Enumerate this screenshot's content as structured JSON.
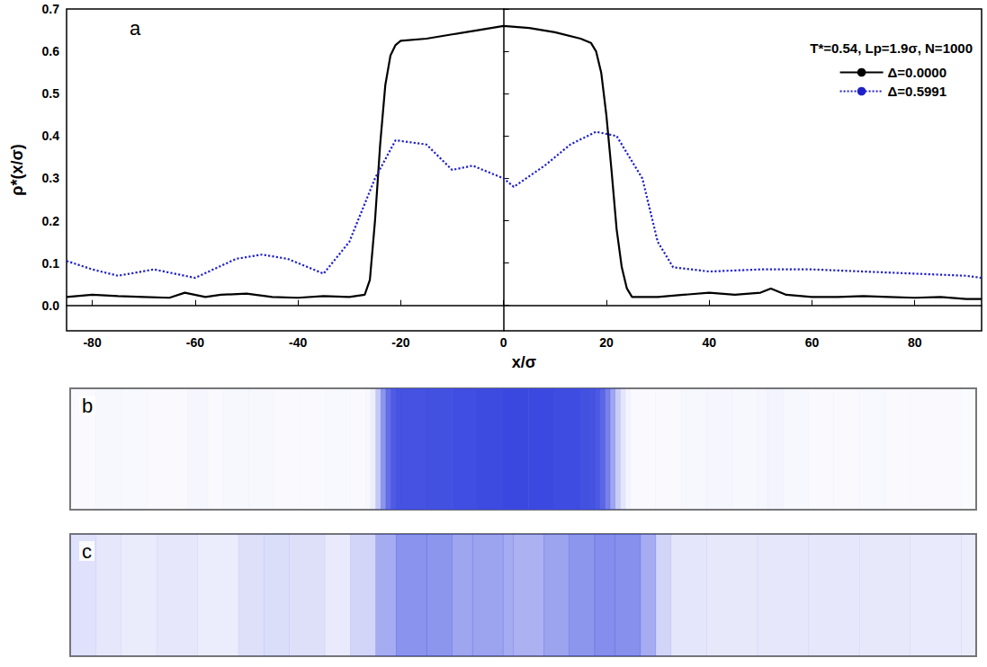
{
  "chart_data": {
    "type": "line",
    "panel_label": "a",
    "x_label": "x/σ",
    "y_label": "ρ*(x/σ)",
    "legend_title": "T*=0.54, Lp=1.9σ, N=1000",
    "legend": "upper right",
    "grid": false,
    "xlim": [
      -85,
      93
    ],
    "ylim": [
      -0.06,
      0.7
    ],
    "xticks": [
      -80,
      -60,
      -40,
      -20,
      0,
      20,
      40,
      60,
      80
    ],
    "yticks": [
      {
        "value": 0,
        "label": "0.0"
      },
      0.1,
      0.2,
      0.3,
      0.4,
      0.5,
      0.6,
      0.7
    ],
    "series": [
      {
        "name": "Δ=0.0000",
        "color": "#000000",
        "line_style": "solid",
        "x": [
          -85,
          -80,
          -75,
          -70,
          -65,
          -62,
          -58,
          -55,
          -50,
          -45,
          -40,
          -35,
          -30,
          -27,
          -26,
          -25,
          -24,
          -23,
          -22,
          -21,
          -20,
          -15,
          -10,
          -5,
          0,
          5,
          10,
          15,
          17,
          18,
          19,
          20,
          21,
          22,
          23,
          24,
          25,
          30,
          35,
          40,
          45,
          50,
          52,
          55,
          60,
          65,
          70,
          75,
          80,
          85,
          90,
          93
        ],
        "values": [
          0.02,
          0.025,
          0.022,
          0.02,
          0.018,
          0.03,
          0.02,
          0.025,
          0.028,
          0.02,
          0.018,
          0.022,
          0.02,
          0.025,
          0.06,
          0.2,
          0.38,
          0.52,
          0.59,
          0.615,
          0.625,
          0.63,
          0.64,
          0.65,
          0.66,
          0.655,
          0.645,
          0.63,
          0.62,
          0.6,
          0.55,
          0.45,
          0.32,
          0.18,
          0.09,
          0.04,
          0.02,
          0.02,
          0.025,
          0.03,
          0.025,
          0.03,
          0.04,
          0.025,
          0.02,
          0.02,
          0.022,
          0.02,
          0.018,
          0.02,
          0.015,
          0.015
        ]
      },
      {
        "name": "Δ=0.5991",
        "color": "#2020c8",
        "line_style": "dotted",
        "x": [
          -85,
          -80,
          -75,
          -68,
          -60,
          -52,
          -47,
          -42,
          -35,
          -30,
          -25,
          -21,
          -15,
          -10,
          -6,
          0,
          2,
          8,
          13,
          18,
          22,
          27,
          30,
          33,
          40,
          50,
          60,
          70,
          80,
          90,
          93
        ],
        "values": [
          0.105,
          0.085,
          0.07,
          0.085,
          0.065,
          0.11,
          0.12,
          0.11,
          0.075,
          0.15,
          0.3,
          0.39,
          0.38,
          0.32,
          0.33,
          0.3,
          0.28,
          0.33,
          0.38,
          0.41,
          0.4,
          0.3,
          0.15,
          0.09,
          0.08,
          0.085,
          0.085,
          0.08,
          0.075,
          0.07,
          0.065
        ]
      }
    ],
    "snapshots": [
      {
        "panel_label": "b",
        "series": "Δ=0.0000"
      },
      {
        "panel_label": "c",
        "series": "Δ=0.5991"
      }
    ]
  }
}
